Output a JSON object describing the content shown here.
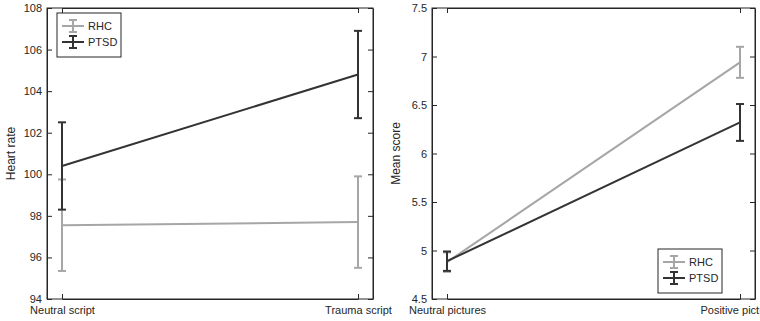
{
  "chart_data": [
    {
      "type": "line",
      "y_label": "Heart rate",
      "categories": [
        "Neutral script",
        "Trauma script"
      ],
      "series": [
        {
          "name": "RHC",
          "color": "#a6a6a6",
          "values": [
            97.55,
            97.7
          ],
          "errors": [
            2.2,
            2.2
          ]
        },
        {
          "name": "PTSD",
          "color": "#333333",
          "values": [
            100.4,
            104.8
          ],
          "errors": [
            2.1,
            2.1
          ]
        }
      ],
      "ylim": [
        94,
        108
      ],
      "yticks": [
        94,
        96,
        98,
        100,
        102,
        104,
        106,
        108
      ],
      "grid": false,
      "legend": "upper left",
      "marker": "none",
      "line_style": "solid"
    },
    {
      "type": "line",
      "y_label": "Mean score",
      "categories": [
        "Neutral pictures",
        "Positive pictures"
      ],
      "series": [
        {
          "name": "RHC",
          "color": "#a6a6a6",
          "values": [
            4.88,
            6.94
          ],
          "errors": [
            0.1,
            0.16
          ]
        },
        {
          "name": "PTSD",
          "color": "#333333",
          "values": [
            4.89,
            6.32
          ],
          "errors": [
            0.1,
            0.19
          ]
        }
      ],
      "ylim": [
        4.5,
        7.5
      ],
      "yticks": [
        4.5,
        5,
        5.5,
        6,
        6.5,
        7,
        7.5
      ],
      "grid": false,
      "legend": "lower right",
      "marker": "none",
      "line_style": "solid"
    }
  ]
}
